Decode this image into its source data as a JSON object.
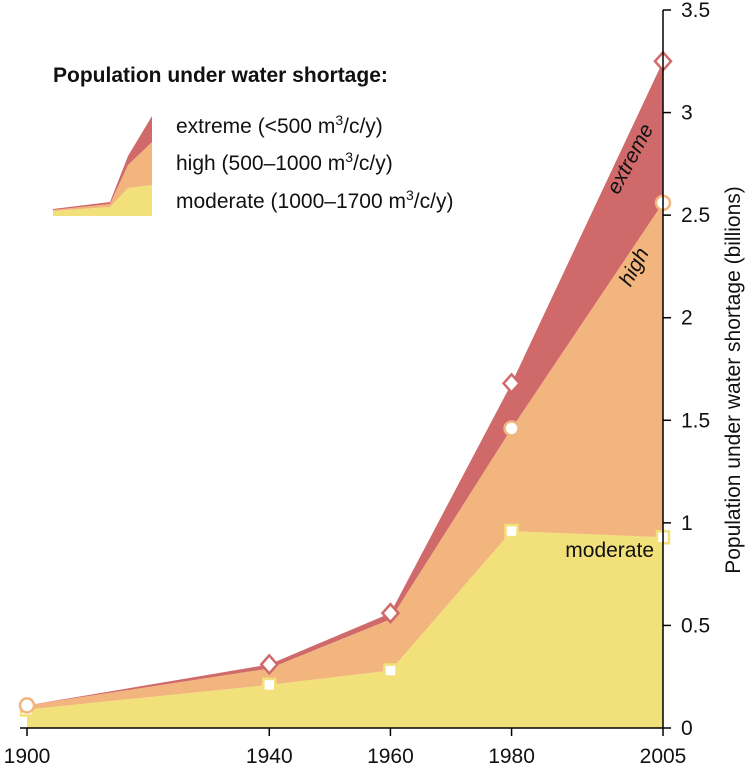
{
  "chart_data": {
    "type": "area",
    "stacked": true,
    "x": [
      1900,
      1940,
      1960,
      1980,
      2005
    ],
    "x_tick_labels": [
      "1900",
      "1940",
      "1960",
      "1980",
      "2005"
    ],
    "y_tick_labels": [
      "0",
      "0.5",
      "1",
      "1.5",
      "2",
      "2.5",
      "3",
      "3.5"
    ],
    "y_ticks": [
      0,
      0.5,
      1,
      1.5,
      2,
      2.5,
      3,
      3.5
    ],
    "xlim": [
      1900,
      2005
    ],
    "ylim": [
      0,
      3.5
    ],
    "ylabel": "Population under water shortage (billions)",
    "legend": {
      "title": "Population under water shortage:",
      "entries": [
        {
          "label": "extreme (<500 m",
          "sup": "3",
          "suffix": "/c/y)"
        },
        {
          "label": "high (500–1000 m",
          "sup": "3",
          "suffix": "/c/y)"
        },
        {
          "label": "moderate (1000–1700 m",
          "sup": "3",
          "suffix": "/c/y)"
        }
      ]
    },
    "series": [
      {
        "name": "moderate",
        "label": "moderate",
        "color": "#f2e17a",
        "marker": "square",
        "cumulative": [
          0.09,
          0.21,
          0.28,
          0.96,
          0.93
        ]
      },
      {
        "name": "high",
        "label": "high",
        "color": "#f2b57e",
        "marker": "circle",
        "cumulative": [
          0.11,
          0.29,
          0.53,
          1.46,
          2.56
        ]
      },
      {
        "name": "extreme",
        "label": "extreme",
        "color": "#d06a6a",
        "marker": "diamond",
        "cumulative": [
          0.11,
          0.31,
          0.56,
          1.68,
          3.25
        ]
      }
    ]
  }
}
